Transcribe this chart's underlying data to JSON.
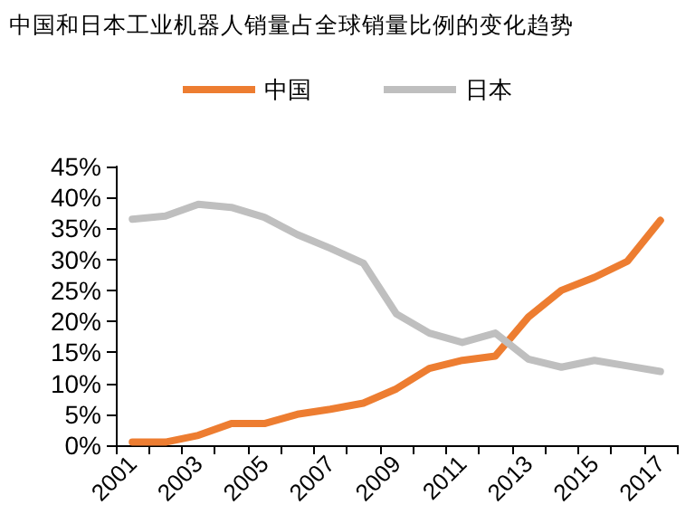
{
  "chart_data": {
    "type": "line",
    "title": "中国和日本工业机器人销量占全球销量比例的变化趋势",
    "categories": [
      "2001",
      null,
      "2003",
      null,
      "2005",
      null,
      "2007",
      null,
      "2009",
      null,
      "2011",
      null,
      "2013",
      null,
      "2015",
      null,
      "2017"
    ],
    "series": [
      {
        "name": "中国",
        "color": "#ed7d31",
        "values": [
          0.5,
          0.5,
          1.6,
          3.5,
          3.5,
          5.0,
          5.8,
          6.8,
          9.1,
          12.4,
          13.7,
          14.4,
          20.7,
          25.0,
          27.1,
          29.7,
          36.3
        ]
      },
      {
        "name": "日本",
        "color": "#bfbfbf",
        "values": [
          36.5,
          37.0,
          38.9,
          38.4,
          36.8,
          34.0,
          31.8,
          29.4,
          21.2,
          18.1,
          16.6,
          18.1,
          13.9,
          12.6,
          13.7,
          12.8,
          11.9
        ]
      }
    ],
    "ylim": [
      0,
      45
    ],
    "yticks": [
      {
        "value": 0,
        "label": "0%"
      },
      {
        "value": 5,
        "label": "5%"
      },
      {
        "value": 10,
        "label": "10%"
      },
      {
        "value": 15,
        "label": "15%"
      },
      {
        "value": 20,
        "label": "20%"
      },
      {
        "value": 25,
        "label": "25%"
      },
      {
        "value": 30,
        "label": "30%"
      },
      {
        "value": 35,
        "label": "35%"
      },
      {
        "value": 40,
        "label": "40%"
      },
      {
        "value": 45,
        "label": "45%"
      }
    ],
    "grid": false,
    "legend": "top",
    "marker": "none",
    "line_style": "solid"
  }
}
